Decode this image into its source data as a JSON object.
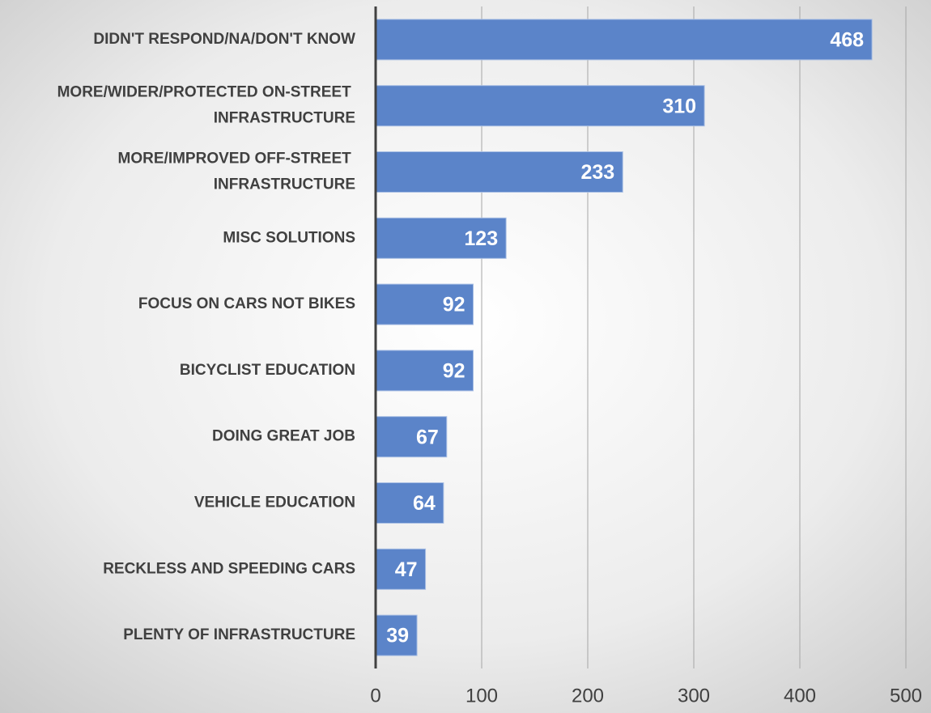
{
  "chart_data": {
    "type": "bar",
    "orientation": "horizontal",
    "categories": [
      "DIDN'T RESPOND/NA/DON'T KNOW",
      "MORE/WIDER/PROTECTED ON-STREET INFRASTRUCTURE",
      "MORE/IMPROVED OFF-STREET INFRASTRUCTURE",
      "MISC SOLUTIONS",
      "FOCUS ON CARS NOT BIKES",
      "BICYCLIST EDUCATION",
      "DOING GREAT JOB",
      "VEHICLE EDUCATION",
      "RECKLESS AND SPEEDING CARS",
      "PLENTY OF INFRASTRUCTURE"
    ],
    "values": [
      468,
      310,
      233,
      123,
      92,
      92,
      67,
      64,
      47,
      39
    ],
    "color": "#5b84c9",
    "xlim": [
      0,
      500
    ],
    "xticks": [
      0,
      100,
      200,
      300,
      400,
      500
    ],
    "grid": true
  }
}
